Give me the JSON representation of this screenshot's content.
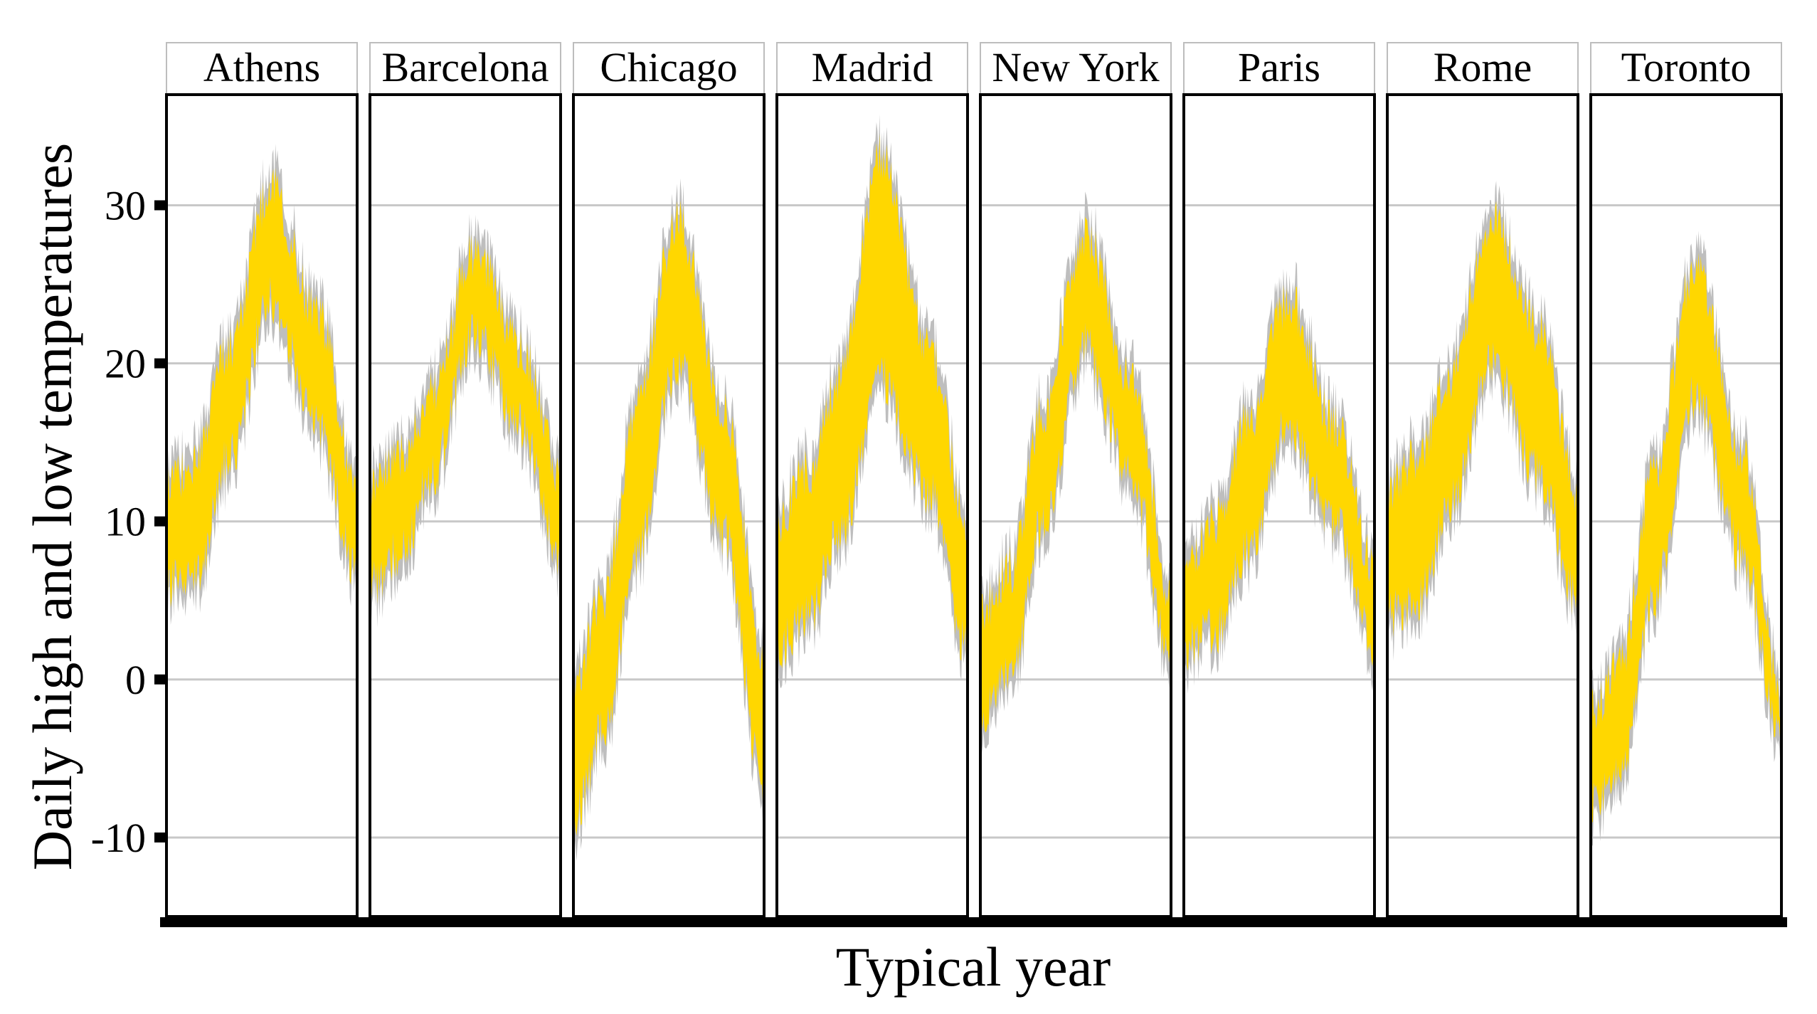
{
  "chart_data": {
    "type": "area",
    "title": "",
    "xlabel": "Typical year",
    "ylabel": "Daily high and low temperatures",
    "ylim": [
      -15,
      37
    ],
    "xlim": [
      1,
      365
    ],
    "yticks": [
      -10,
      0,
      10,
      20,
      30
    ],
    "ytick_labels": [
      "-10",
      "0",
      "10",
      "20",
      "30"
    ],
    "grid": "horizontal",
    "legend": "none",
    "fill_color": "#FFD700",
    "envelope_color": "#BEBEBE",
    "facets": [
      {
        "name": "Athens",
        "x": [
          1,
          60,
          120,
          200,
          290,
          365
        ],
        "low": [
          6,
          7,
          14,
          24,
          16,
          7
        ],
        "high": [
          12,
          14,
          21,
          31,
          23,
          12
        ]
      },
      {
        "name": "Barcelona",
        "x": [
          1,
          60,
          120,
          200,
          290,
          365
        ],
        "low": [
          6,
          8,
          13,
          22,
          16,
          8
        ],
        "high": [
          12,
          14,
          18,
          27,
          21,
          13
        ]
      },
      {
        "name": "Chicago",
        "x": [
          1,
          60,
          120,
          200,
          290,
          365
        ],
        "low": [
          -9,
          -3,
          8,
          20,
          9,
          -7
        ],
        "high": [
          0,
          5,
          17,
          29,
          17,
          1
        ]
      },
      {
        "name": "Madrid",
        "x": [
          1,
          60,
          120,
          200,
          290,
          365
        ],
        "low": [
          2,
          4,
          9,
          19,
          12,
          2
        ],
        "high": [
          10,
          13,
          19,
          33,
          21,
          10
        ]
      },
      {
        "name": "New York",
        "x": [
          1,
          60,
          120,
          200,
          290,
          365
        ],
        "low": [
          -2,
          0,
          10,
          21,
          13,
          1
        ],
        "high": [
          4,
          7,
          17,
          28,
          19,
          5
        ]
      },
      {
        "name": "Paris",
        "x": [
          1,
          60,
          120,
          200,
          290,
          365
        ],
        "low": [
          2,
          3,
          8,
          16,
          10,
          2
        ],
        "high": [
          7,
          10,
          16,
          24,
          16,
          7
        ]
      },
      {
        "name": "Rome",
        "x": [
          1,
          60,
          120,
          200,
          290,
          365
        ],
        "low": [
          4,
          5,
          11,
          20,
          13,
          5
        ],
        "high": [
          12,
          14,
          19,
          29,
          22,
          12
        ]
      },
      {
        "name": "Toronto",
        "x": [
          1,
          60,
          120,
          200,
          290,
          365
        ],
        "low": [
          -8,
          -6,
          5,
          18,
          8,
          -4
        ],
        "high": [
          -2,
          1,
          13,
          26,
          14,
          -1
        ]
      }
    ]
  }
}
